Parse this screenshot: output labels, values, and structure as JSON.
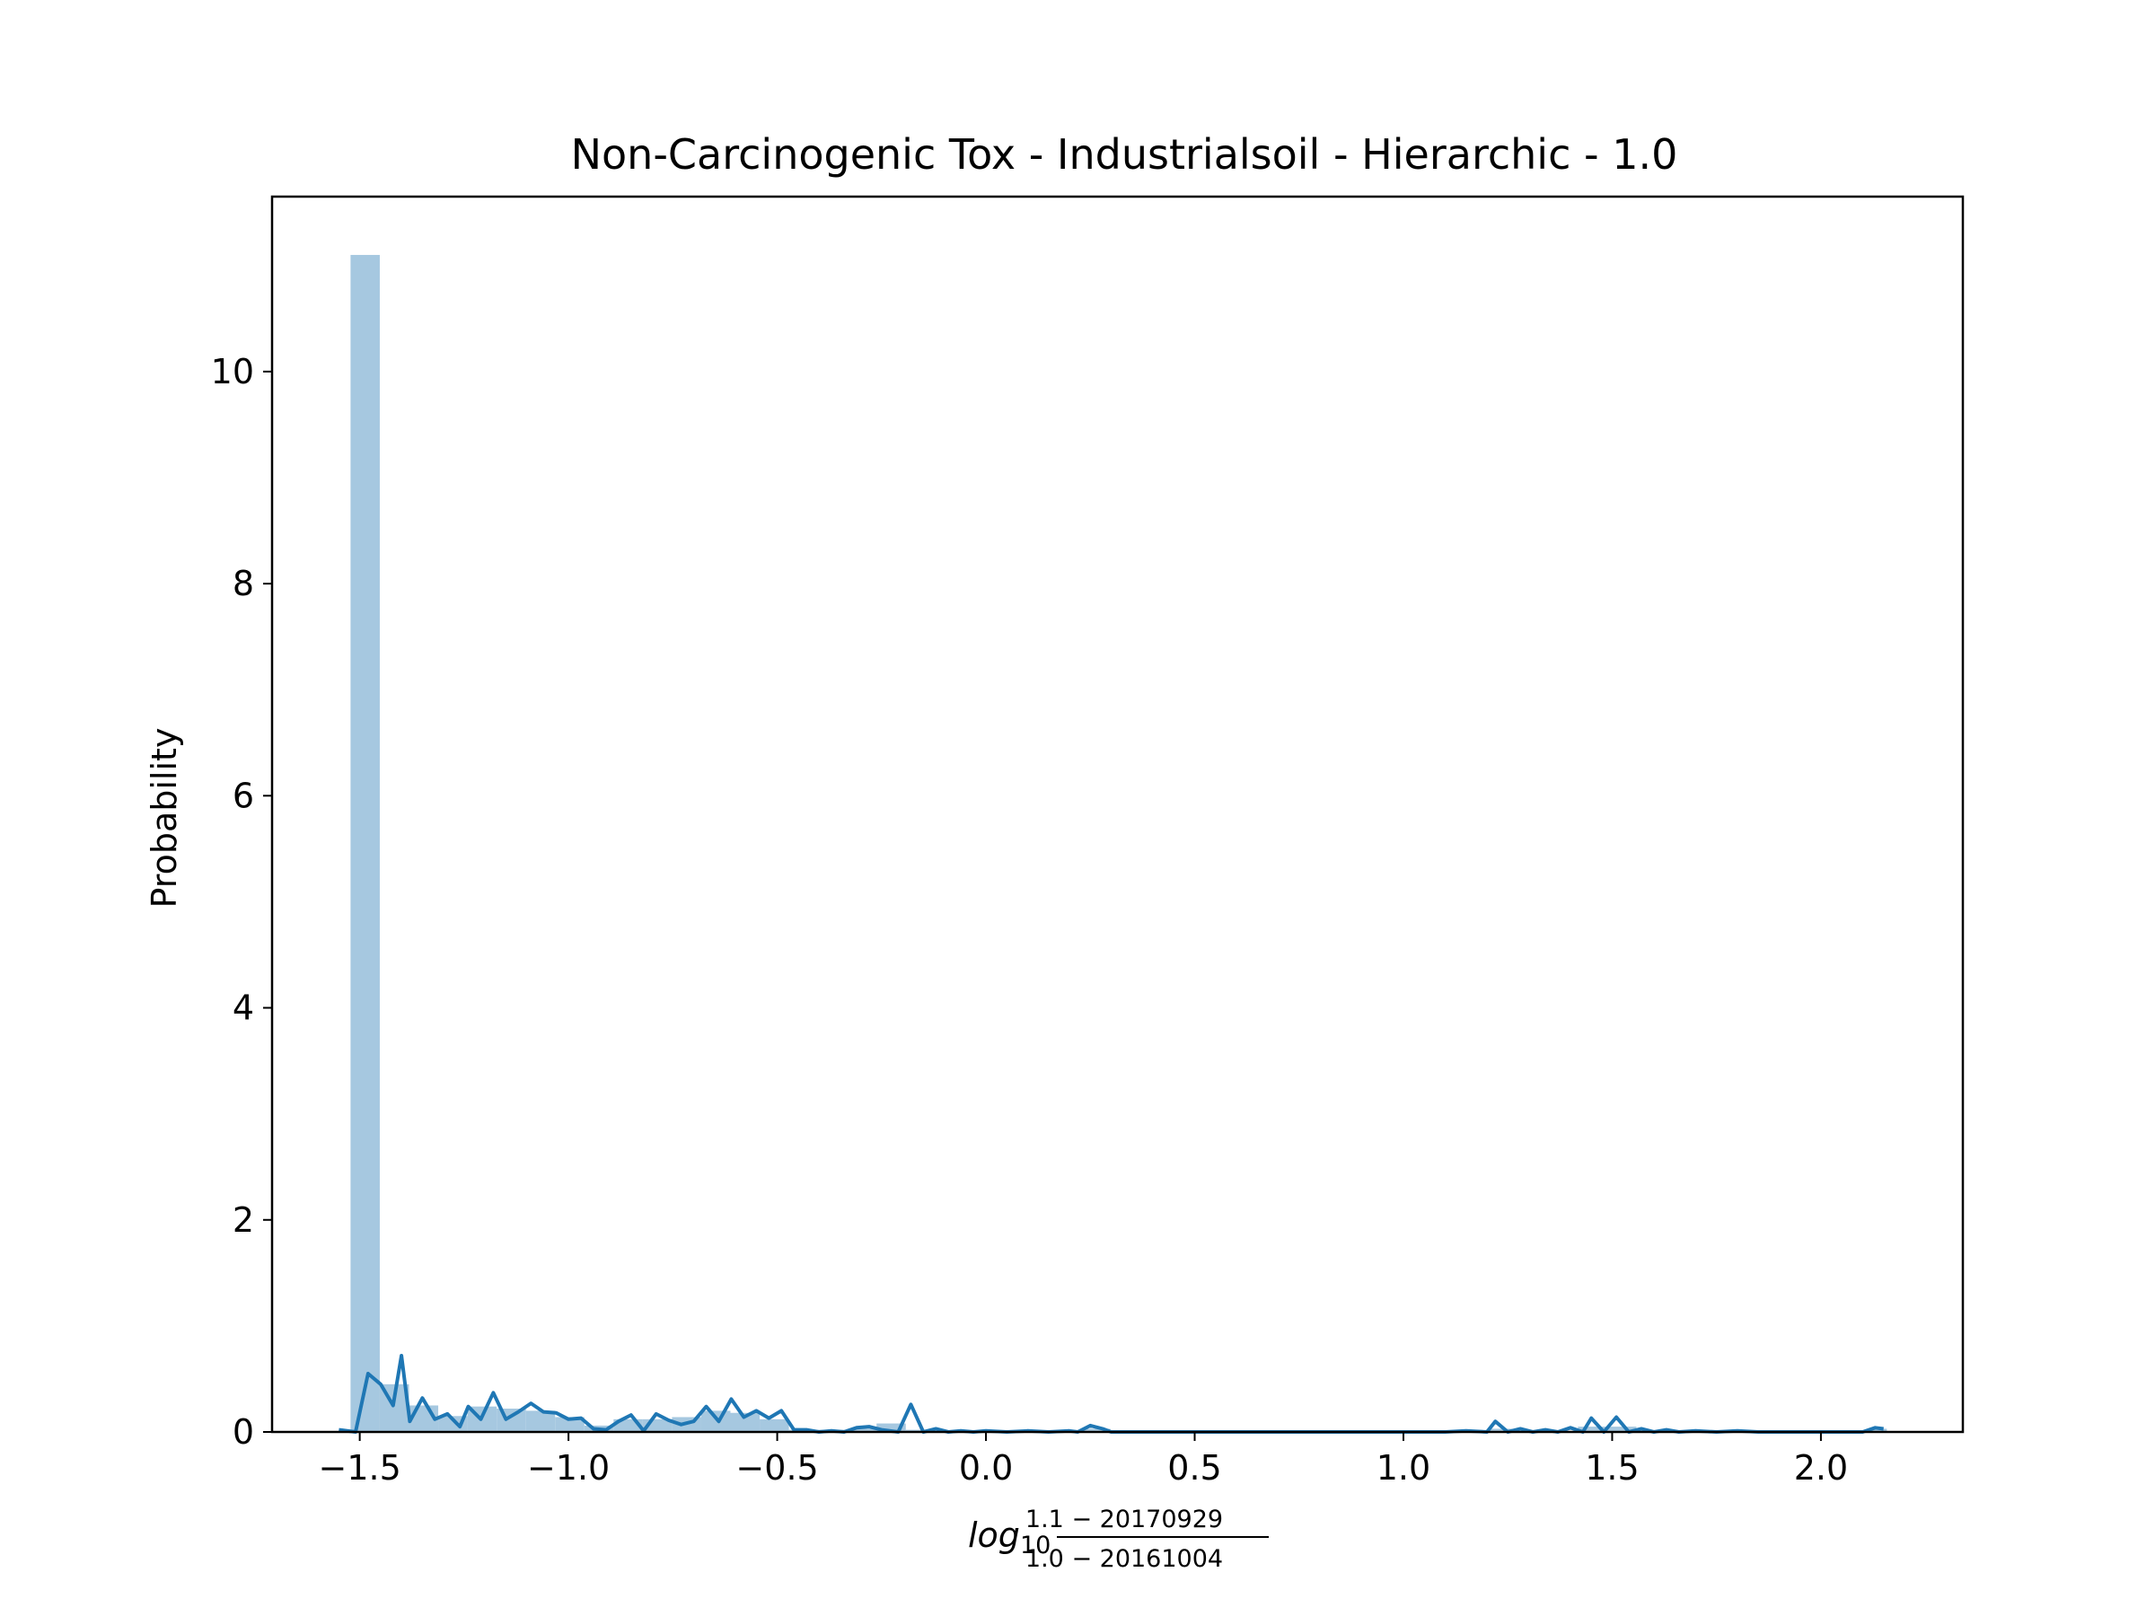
{
  "chart_data": {
    "type": "bar",
    "title": "Non-Carcinogenic Tox - Industrialsoil - Hierarchic - 1.0",
    "ylabel": "Probability",
    "xlabel": {
      "prefix": "log",
      "base": "10",
      "numerator": "1.1 − 20170929",
      "denominator": "1.0 − 20161004"
    },
    "xlim": [
      -1.71,
      2.34
    ],
    "ylim": [
      0,
      11.65
    ],
    "xticks": [
      {
        "value": -1.5,
        "label": "−1.5"
      },
      {
        "value": -1.0,
        "label": "−1.0"
      },
      {
        "value": -0.5,
        "label": "−0.5"
      },
      {
        "value": 0.0,
        "label": "0.0"
      },
      {
        "value": 0.5,
        "label": "0.5"
      },
      {
        "value": 1.0,
        "label": "1.0"
      },
      {
        "value": 1.5,
        "label": "1.5"
      },
      {
        "value": 2.0,
        "label": "2.0"
      }
    ],
    "yticks": [
      {
        "value": 0,
        "label": "0"
      },
      {
        "value": 2,
        "label": "2"
      },
      {
        "value": 4,
        "label": "4"
      },
      {
        "value": 6,
        "label": "6"
      },
      {
        "value": 8,
        "label": "8"
      },
      {
        "value": 10,
        "label": "10"
      }
    ],
    "histogram": {
      "color": "#a6c8e0",
      "bins": [
        {
          "x0": -1.522,
          "x1": -1.452,
          "value": 11.1
        },
        {
          "x0": -1.452,
          "x1": -1.382,
          "value": 0.45
        },
        {
          "x0": -1.382,
          "x1": -1.312,
          "value": 0.25
        },
        {
          "x0": -1.312,
          "x1": -1.242,
          "value": 0.15
        },
        {
          "x0": -1.242,
          "x1": -1.172,
          "value": 0.24
        },
        {
          "x0": -1.172,
          "x1": -1.102,
          "value": 0.22
        },
        {
          "x0": -1.102,
          "x1": -1.032,
          "value": 0.2
        },
        {
          "x0": -1.032,
          "x1": -0.962,
          "value": 0.14
        },
        {
          "x0": -0.962,
          "x1": -0.892,
          "value": 0.06
        },
        {
          "x0": -0.892,
          "x1": -0.822,
          "value": 0.12
        },
        {
          "x0": -0.822,
          "x1": -0.752,
          "value": 0.12
        },
        {
          "x0": -0.752,
          "x1": -0.682,
          "value": 0.14
        },
        {
          "x0": -0.682,
          "x1": -0.612,
          "value": 0.2
        },
        {
          "x0": -0.612,
          "x1": -0.542,
          "value": 0.18
        },
        {
          "x0": -0.542,
          "x1": -0.472,
          "value": 0.12
        },
        {
          "x0": -0.472,
          "x1": -0.402,
          "value": 0.02
        },
        {
          "x0": -0.402,
          "x1": -0.332,
          "value": 0.02
        },
        {
          "x0": -0.332,
          "x1": -0.262,
          "value": 0.03
        },
        {
          "x0": -0.262,
          "x1": -0.192,
          "value": 0.08
        },
        {
          "x0": -0.192,
          "x1": -0.122,
          "value": 0.02
        },
        {
          "x0": 0.228,
          "x1": 0.298,
          "value": 0.03
        },
        {
          "x0": 1.208,
          "x1": 1.278,
          "value": 0.03
        },
        {
          "x0": 1.418,
          "x1": 1.488,
          "value": 0.05
        },
        {
          "x0": 1.488,
          "x1": 1.558,
          "value": 0.05
        },
        {
          "x0": 2.118,
          "x1": 2.158,
          "value": 0.03
        }
      ]
    },
    "series": [
      {
        "type": "line",
        "color": "#1f77b4",
        "x": [
          -1.55,
          -1.51,
          -1.48,
          -1.45,
          -1.42,
          -1.4,
          -1.38,
          -1.35,
          -1.32,
          -1.29,
          -1.26,
          -1.24,
          -1.21,
          -1.18,
          -1.15,
          -1.12,
          -1.09,
          -1.06,
          -1.03,
          -1.0,
          -0.97,
          -0.94,
          -0.91,
          -0.88,
          -0.85,
          -0.82,
          -0.79,
          -0.76,
          -0.73,
          -0.7,
          -0.67,
          -0.64,
          -0.61,
          -0.58,
          -0.55,
          -0.52,
          -0.49,
          -0.46,
          -0.43,
          -0.4,
          -0.37,
          -0.34,
          -0.31,
          -0.28,
          -0.25,
          -0.21,
          -0.18,
          -0.15,
          -0.12,
          -0.09,
          -0.06,
          -0.03,
          0.0,
          0.05,
          0.1,
          0.15,
          0.2,
          0.22,
          0.25,
          0.28,
          0.3,
          0.35,
          0.4,
          0.5,
          0.6,
          0.7,
          0.8,
          0.9,
          1.0,
          1.1,
          1.15,
          1.2,
          1.22,
          1.25,
          1.28,
          1.31,
          1.34,
          1.37,
          1.4,
          1.43,
          1.45,
          1.48,
          1.51,
          1.54,
          1.57,
          1.6,
          1.63,
          1.66,
          1.7,
          1.75,
          1.8,
          1.85,
          1.9,
          1.95,
          2.0,
          2.05,
          2.1,
          2.13,
          2.15
        ],
        "y": [
          0.02,
          0.0,
          0.55,
          0.45,
          0.25,
          0.72,
          0.1,
          0.32,
          0.12,
          0.17,
          0.05,
          0.24,
          0.12,
          0.37,
          0.12,
          0.19,
          0.27,
          0.19,
          0.18,
          0.12,
          0.13,
          0.03,
          0.02,
          0.1,
          0.16,
          0.01,
          0.17,
          0.11,
          0.07,
          0.1,
          0.24,
          0.1,
          0.31,
          0.14,
          0.2,
          0.13,
          0.2,
          0.02,
          0.02,
          0.0,
          0.01,
          0.0,
          0.04,
          0.05,
          0.02,
          0.0,
          0.26,
          0.0,
          0.03,
          0.0,
          0.01,
          0.0,
          0.01,
          0.0,
          0.01,
          0.0,
          0.01,
          0.0,
          0.06,
          0.03,
          0.0,
          0.0,
          0.0,
          0.0,
          0.0,
          0.0,
          0.0,
          0.0,
          0.0,
          0.0,
          0.01,
          0.0,
          0.1,
          0.0,
          0.03,
          0.0,
          0.02,
          0.0,
          0.04,
          0.0,
          0.13,
          0.0,
          0.14,
          0.0,
          0.03,
          0.0,
          0.02,
          0.0,
          0.01,
          0.0,
          0.01,
          0.0,
          0.0,
          0.0,
          0.0,
          0.0,
          0.0,
          0.04,
          0.03
        ]
      }
    ],
    "grid": false,
    "legend": "none"
  }
}
